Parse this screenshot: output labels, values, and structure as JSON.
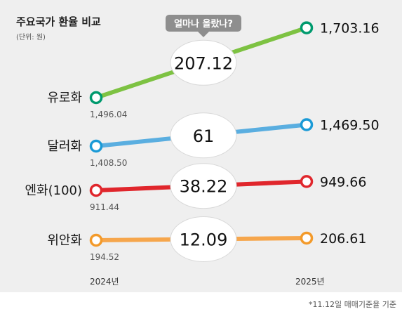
{
  "chart_data": {
    "type": "line",
    "title": "주요국가 환율 비교",
    "subtitle": "(단위: 원)",
    "callout": "얼마나 올랐나?",
    "x": [
      "2024년",
      "2025년"
    ],
    "series": [
      {
        "name": "유로화",
        "values": [
          1496.04,
          1703.16
        ],
        "start_label": "1,496.04",
        "end_label": "1,703.16",
        "diff_label": "207.12",
        "color": "#7dc242",
        "marker_color": "#009a6e"
      },
      {
        "name": "달러화",
        "values": [
          1408.5,
          1469.5
        ],
        "start_label": "1,408.50",
        "end_label": "1,469.50",
        "diff_label": "61",
        "color": "#5aaee0",
        "marker_color": "#1a9ad6"
      },
      {
        "name": "엔화(100)",
        "values": [
          911.44,
          949.66
        ],
        "start_label": "911.44",
        "end_label": "949.66",
        "diff_label": "38.22",
        "color": "#e0262c",
        "marker_color": "#e0262c"
      },
      {
        "name": "위안화",
        "values": [
          194.52,
          206.61
        ],
        "start_label": "194.52",
        "end_label": "206.61",
        "diff_label": "12.09",
        "color": "#f6a64c",
        "marker_color": "#f39a2a"
      }
    ],
    "footnote": "*11.12일 매매기준율 기준"
  }
}
